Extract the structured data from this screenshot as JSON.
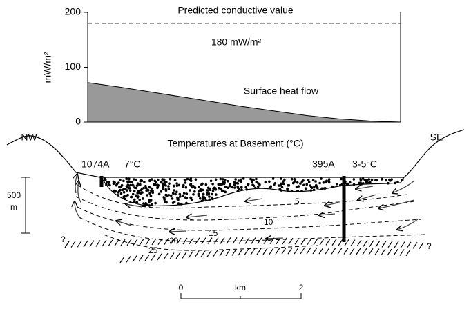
{
  "chart_data": {
    "type": "area",
    "y_label": "mW/m²",
    "annotation": "180 mW/m²",
    "categories": [
      null,
      null,
      null,
      null,
      null,
      null,
      null,
      null,
      null,
      null,
      null
    ],
    "series": [
      {
        "name": "Surface heat flow",
        "color": "#999999",
        "values": [
          72,
          64,
          55,
          46,
          37,
          28,
          20,
          12,
          6,
          2,
          0
        ]
      },
      {
        "name": "Predicted conductive value",
        "color": "#000000",
        "dashed": true,
        "values": [
          180,
          180,
          180,
          180,
          180,
          180,
          180,
          180,
          180,
          180,
          180
        ]
      }
    ],
    "ylim": [
      0,
      200
    ],
    "yticks": [
      0,
      100,
      200
    ]
  },
  "diagram": {
    "title": "Temperatures at Basement (°C)",
    "left_label": "NW",
    "right_label": "SE",
    "sites": [
      {
        "name": "1074A",
        "temp": "7°C"
      },
      {
        "name": "395A",
        "temp": "3-5°C"
      }
    ],
    "vertical_scale": {
      "value": "500",
      "unit": "m"
    },
    "isotherms": [
      "5",
      "10",
      "15",
      "20",
      "25"
    ],
    "unknown": [
      "?",
      "?"
    ],
    "scale_bar": {
      "start": "0",
      "unit": "km",
      "end": "2"
    }
  }
}
